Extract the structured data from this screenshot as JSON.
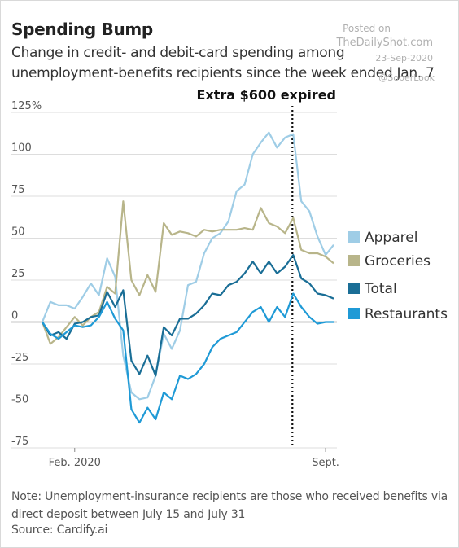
{
  "watermark": {
    "posted": "Posted on",
    "site": "TheDailyShot.com",
    "date": "23-Sep-2020",
    "handle": "@SoberLook"
  },
  "note": "Note: Unemployment-insurance recipients are those who received benefits via direct deposit between July 15 and July 31",
  "source": "Source: Cardify.ai",
  "chart_data": {
    "type": "line",
    "title": "Spending Bump",
    "subtitle": "Change in credit- and debit-card spending among unemployment-benefits recipients since the week ended Jan. 7",
    "x_labels": [
      "Feb. 2020",
      "Sept."
    ],
    "x_count": 37,
    "y_ticks": [
      125,
      100,
      75,
      50,
      25,
      0,
      -25,
      -50,
      -75
    ],
    "y_tick_labels": [
      "125%",
      "100",
      "75",
      "50",
      "25",
      "0",
      "-25",
      "-50",
      "-75"
    ],
    "ylim": [
      -75,
      125
    ],
    "grid": true,
    "legend_position": "right",
    "annotation": {
      "label": "Extra $600 expired",
      "x_index": 31
    },
    "series": [
      {
        "name": "Apparel",
        "color": "#9fcde6",
        "values": [
          0,
          12,
          10,
          10,
          8,
          15,
          23,
          16,
          38,
          27,
          -20,
          -42,
          -46,
          -45,
          -32,
          -7,
          -16,
          -5,
          22,
          24,
          41,
          50,
          53,
          60,
          78,
          82,
          100,
          107,
          113,
          104,
          110,
          112,
          72,
          66,
          51,
          40,
          46
        ]
      },
      {
        "name": "Groceries",
        "color": "#b8b58a",
        "values": [
          0,
          -13,
          -9,
          -3,
          3,
          -2,
          3,
          6,
          21,
          17,
          72,
          25,
          16,
          28,
          18,
          59,
          52,
          54,
          53,
          51,
          55,
          54,
          55,
          55,
          55,
          56,
          55,
          68,
          59,
          57,
          53,
          62,
          43,
          41,
          41,
          39,
          35
        ]
      },
      {
        "name": "Total",
        "color": "#1a6e96",
        "values": [
          0,
          -8,
          -6,
          -10,
          -1,
          0,
          3,
          4,
          18,
          9,
          19,
          -23,
          -31,
          -20,
          -32,
          -3,
          -8,
          2,
          2,
          5,
          10,
          17,
          16,
          22,
          24,
          29,
          36,
          29,
          36,
          29,
          33,
          40,
          26,
          23,
          17,
          16,
          14
        ]
      },
      {
        "name": "Restaurants",
        "color": "#1f9ad6",
        "values": [
          0,
          -7,
          -10,
          -6,
          -2,
          -3,
          -2,
          3,
          12,
          2,
          -5,
          -52,
          -60,
          -51,
          -58,
          -42,
          -46,
          -32,
          -34,
          -31,
          -25,
          -15,
          -10,
          -8,
          -6,
          0,
          6,
          9,
          0,
          9,
          3,
          17,
          9,
          3,
          -1,
          0,
          0
        ]
      }
    ]
  }
}
